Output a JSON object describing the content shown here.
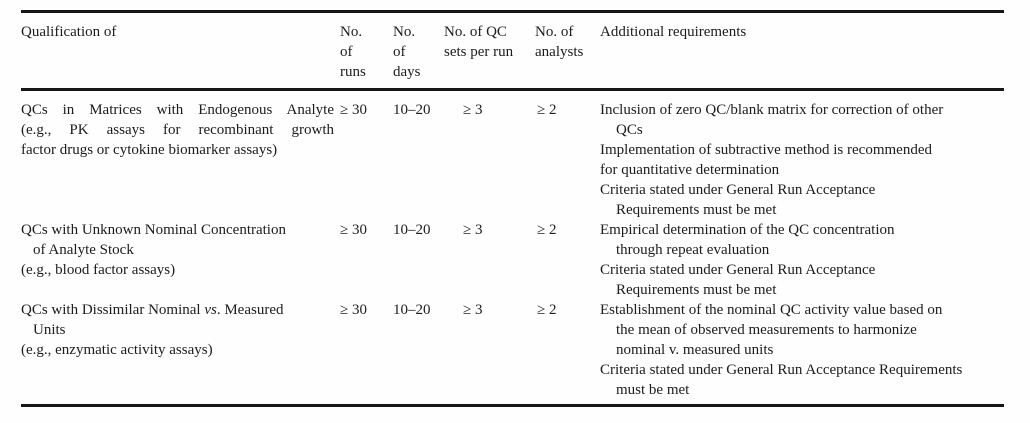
{
  "table": {
    "headers": {
      "qualification": [
        "Qualification of"
      ],
      "runs": [
        "No.",
        "of",
        "runs"
      ],
      "days": [
        "No.",
        "of",
        "days"
      ],
      "qc_sets": [
        "No. of QC",
        "sets per run"
      ],
      "analysts": [
        "No. of",
        "analysts"
      ],
      "additional": [
        "Additional requirements"
      ]
    },
    "rows": [
      {
        "qualification_lines": [
          "QCs in Matrices with Endogenous Analyte",
          "(e.g., PK assays for recombinant growth",
          "factor drugs or cytokine biomarker assays)"
        ],
        "runs": "≥ 30",
        "days": "10–20",
        "qc_sets": "≥ 3",
        "analysts": "≥ 2",
        "additional_lines": [
          "Inclusion of zero QC/blank matrix for correction of other",
          "QCs",
          "Implementation of subtractive method is recommended",
          "for quantitative determination",
          "Criteria stated under General Run Acceptance",
          "Requirements must be met"
        ]
      },
      {
        "qualification_lines": [
          "QCs with Unknown Nominal Concentration",
          "of Analyte Stock",
          "(e.g., blood factor assays)"
        ],
        "runs": "≥ 30",
        "days": "10–20",
        "qc_sets": "≥ 3",
        "analysts": "≥ 2",
        "additional_lines": [
          "Empirical determination of the QC concentration",
          "through repeat evaluation",
          "Criteria stated under General Run Acceptance",
          "Requirements must be met"
        ]
      },
      {
        "qualification_line1": {
          "pre": "QCs with Dissimilar Nominal ",
          "italic": "vs",
          "post": ". Measured"
        },
        "qualification_lines": [
          "Units",
          "(e.g., enzymatic activity assays)"
        ],
        "runs": "≥ 30",
        "days": "10–20",
        "qc_sets": "≥ 3",
        "analysts": "≥ 2",
        "additional_lines": [
          "Establishment of the nominal QC activity value based on",
          "the mean of observed measurements to harmonize",
          "nominal v. measured units",
          "Criteria stated under General Run Acceptance Requirements",
          "must be met"
        ]
      }
    ]
  }
}
